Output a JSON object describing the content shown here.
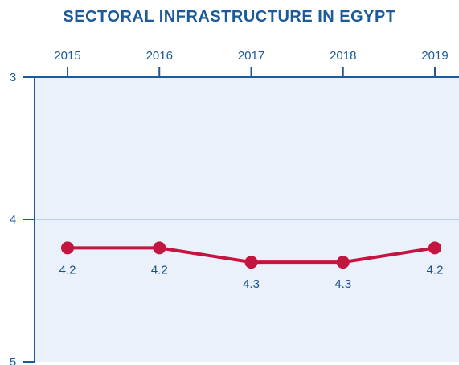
{
  "chart_data": {
    "type": "line",
    "title": "SECTORAL INFRASTRUCTURE IN EGYPT",
    "xlabel": "",
    "ylabel": "",
    "x_axis_position": "top",
    "y_inverted": true,
    "categories": [
      "2015",
      "2016",
      "2017",
      "2018",
      "2019"
    ],
    "ylim": [
      3,
      5
    ],
    "yticks": [
      "3",
      "4",
      "5"
    ],
    "grid": "horizontal line at 4",
    "series": [
      {
        "values": [
          4.2,
          4.2,
          4.3,
          4.3,
          4.2
        ],
        "labels": [
          "4.2",
          "4.2",
          "4.3",
          "4.3",
          "4.2"
        ]
      }
    ],
    "colors": {
      "title": "#1c5a9a",
      "axis": "#1c5a9a",
      "plot_bg": "#eaf1fa",
      "line": "#c41440",
      "gridline": "#a9c7e6"
    }
  }
}
